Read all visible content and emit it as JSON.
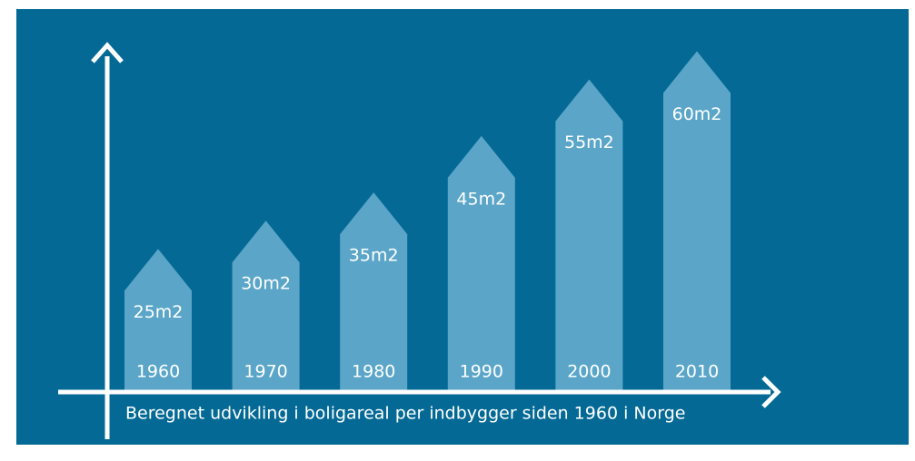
{
  "chart_data": {
    "type": "house-bar",
    "title": "Beregnet udvikling i boligareal per indbygger siden 1960 i  Norge",
    "categories": [
      "1960",
      "1970",
      "1980",
      "1990",
      "2000",
      "2010"
    ],
    "values": [
      25,
      30,
      35,
      45,
      55,
      60
    ],
    "value_labels": [
      "25m2",
      "30m2",
      "35m2",
      "45m2",
      "55m2",
      "60m2"
    ],
    "color": "#5ba6c8",
    "ylim": [
      0,
      62
    ]
  }
}
